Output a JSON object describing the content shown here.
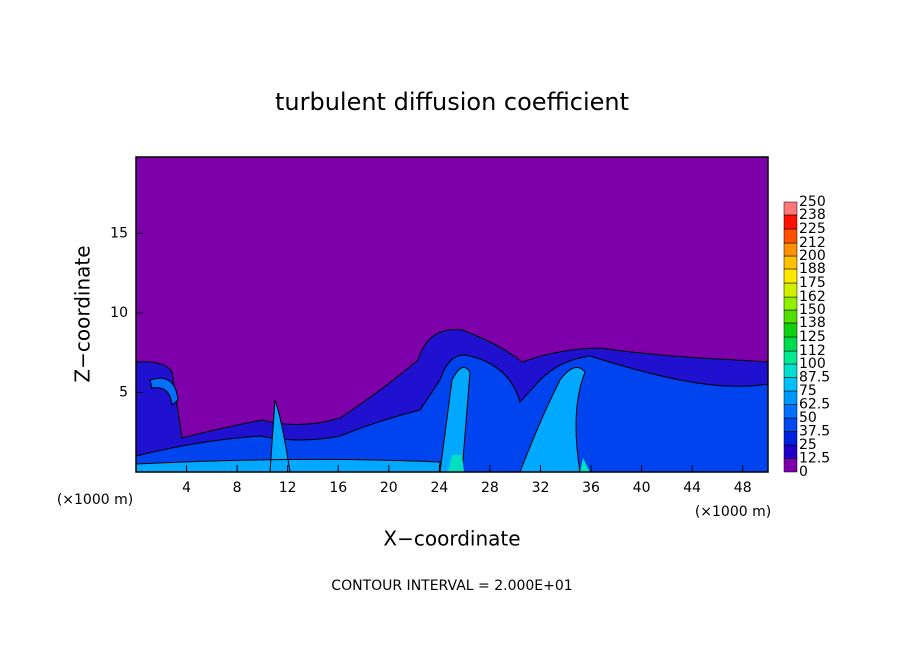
{
  "chart_data": {
    "type": "contour",
    "title": "turbulent diffusion coefficient",
    "x_label": "X−coordinate",
    "y_label": "Z−coordinate",
    "x_unit": "(×1000 m)",
    "footnote": "CONTOUR INTERVAL = 2.000E+01",
    "xlim": [
      0,
      50
    ],
    "xticks": [
      4,
      8,
      12,
      16,
      20,
      24,
      28,
      32,
      36,
      40,
      44,
      48
    ],
    "ylim": [
      0,
      19.8
    ],
    "yticks": [
      5,
      10,
      15
    ],
    "colorbar": {
      "clim": [
        0,
        250
      ],
      "ticks": [
        0,
        12.5,
        25,
        37.5,
        50,
        62.5,
        75,
        87.5,
        100,
        112,
        125,
        138,
        150,
        162,
        175,
        188,
        200,
        212,
        225,
        238,
        250
      ],
      "colors": [
        "#7d00aa",
        "#2000c8",
        "#0020e0",
        "#0048f0",
        "#0070ff",
        "#0098ff",
        "#00c0f8",
        "#00e0d0",
        "#00e890",
        "#00dc50",
        "#10d010",
        "#50e000",
        "#90f000",
        "#d0f000",
        "#ffe800",
        "#ffc000",
        "#ff9000",
        "#ff5000",
        "#ff1000",
        "#ff7878"
      ]
    }
  }
}
